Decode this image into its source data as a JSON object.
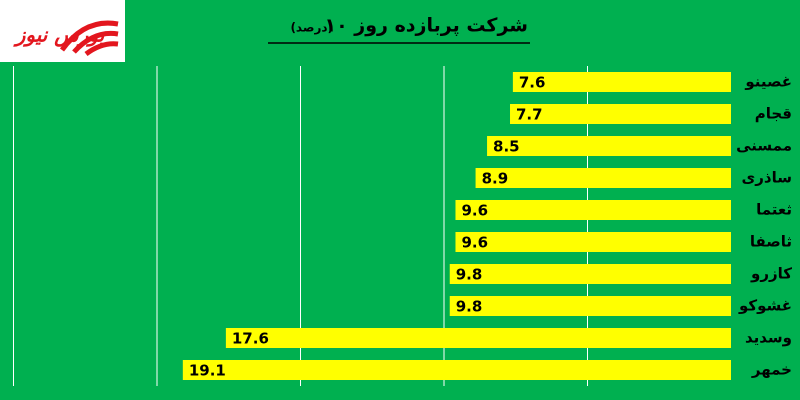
{
  "logo": "بورس نیوز",
  "chart_data": {
    "type": "bar",
    "title": "۱۰ شرکت پربازده روز",
    "subtitle": "(درصد)",
    "categories": [
      "غصینو",
      "قجام",
      "ممسنی",
      "ساذری",
      "ثعتما",
      "ثاصفا",
      "کازرو",
      "غشوکو",
      "وسدید",
      "خمهر"
    ],
    "values": [
      7.6,
      7.7,
      8.5,
      8.9,
      9.6,
      9.6,
      9.8,
      9.8,
      17.6,
      19.1
    ],
    "color": "#ffff00",
    "xlim": [
      0,
      25
    ],
    "xticks": [
      5,
      10,
      15,
      20,
      25
    ],
    "grid": true
  }
}
